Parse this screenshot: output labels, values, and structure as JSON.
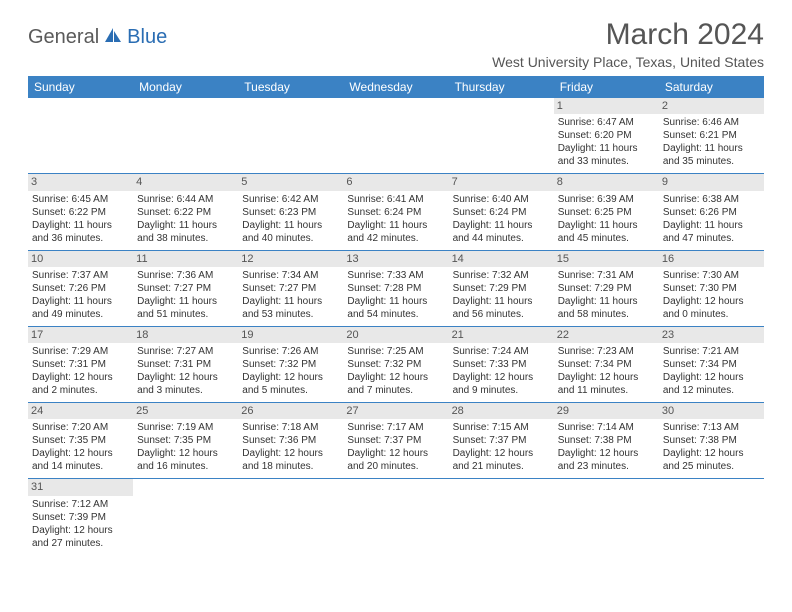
{
  "logo": {
    "general": "General",
    "blue": "Blue"
  },
  "title": "March 2024",
  "subtitle": "West University Place, Texas, United States",
  "colors": {
    "header_bg": "#3b82c4",
    "header_text": "#ffffff",
    "daynum_bg": "#e8e8e8",
    "border": "#3b82c4",
    "text": "#333333",
    "title_color": "#555555"
  },
  "day_headers": [
    "Sunday",
    "Monday",
    "Tuesday",
    "Wednesday",
    "Thursday",
    "Friday",
    "Saturday"
  ],
  "weeks": [
    [
      null,
      null,
      null,
      null,
      null,
      {
        "num": "1",
        "sunrise": "Sunrise: 6:47 AM",
        "sunset": "Sunset: 6:20 PM",
        "daylight": "Daylight: 11 hours and 33 minutes."
      },
      {
        "num": "2",
        "sunrise": "Sunrise: 6:46 AM",
        "sunset": "Sunset: 6:21 PM",
        "daylight": "Daylight: 11 hours and 35 minutes."
      }
    ],
    [
      {
        "num": "3",
        "sunrise": "Sunrise: 6:45 AM",
        "sunset": "Sunset: 6:22 PM",
        "daylight": "Daylight: 11 hours and 36 minutes."
      },
      {
        "num": "4",
        "sunrise": "Sunrise: 6:44 AM",
        "sunset": "Sunset: 6:22 PM",
        "daylight": "Daylight: 11 hours and 38 minutes."
      },
      {
        "num": "5",
        "sunrise": "Sunrise: 6:42 AM",
        "sunset": "Sunset: 6:23 PM",
        "daylight": "Daylight: 11 hours and 40 minutes."
      },
      {
        "num": "6",
        "sunrise": "Sunrise: 6:41 AM",
        "sunset": "Sunset: 6:24 PM",
        "daylight": "Daylight: 11 hours and 42 minutes."
      },
      {
        "num": "7",
        "sunrise": "Sunrise: 6:40 AM",
        "sunset": "Sunset: 6:24 PM",
        "daylight": "Daylight: 11 hours and 44 minutes."
      },
      {
        "num": "8",
        "sunrise": "Sunrise: 6:39 AM",
        "sunset": "Sunset: 6:25 PM",
        "daylight": "Daylight: 11 hours and 45 minutes."
      },
      {
        "num": "9",
        "sunrise": "Sunrise: 6:38 AM",
        "sunset": "Sunset: 6:26 PM",
        "daylight": "Daylight: 11 hours and 47 minutes."
      }
    ],
    [
      {
        "num": "10",
        "sunrise": "Sunrise: 7:37 AM",
        "sunset": "Sunset: 7:26 PM",
        "daylight": "Daylight: 11 hours and 49 minutes."
      },
      {
        "num": "11",
        "sunrise": "Sunrise: 7:36 AM",
        "sunset": "Sunset: 7:27 PM",
        "daylight": "Daylight: 11 hours and 51 minutes."
      },
      {
        "num": "12",
        "sunrise": "Sunrise: 7:34 AM",
        "sunset": "Sunset: 7:27 PM",
        "daylight": "Daylight: 11 hours and 53 minutes."
      },
      {
        "num": "13",
        "sunrise": "Sunrise: 7:33 AM",
        "sunset": "Sunset: 7:28 PM",
        "daylight": "Daylight: 11 hours and 54 minutes."
      },
      {
        "num": "14",
        "sunrise": "Sunrise: 7:32 AM",
        "sunset": "Sunset: 7:29 PM",
        "daylight": "Daylight: 11 hours and 56 minutes."
      },
      {
        "num": "15",
        "sunrise": "Sunrise: 7:31 AM",
        "sunset": "Sunset: 7:29 PM",
        "daylight": "Daylight: 11 hours and 58 minutes."
      },
      {
        "num": "16",
        "sunrise": "Sunrise: 7:30 AM",
        "sunset": "Sunset: 7:30 PM",
        "daylight": "Daylight: 12 hours and 0 minutes."
      }
    ],
    [
      {
        "num": "17",
        "sunrise": "Sunrise: 7:29 AM",
        "sunset": "Sunset: 7:31 PM",
        "daylight": "Daylight: 12 hours and 2 minutes."
      },
      {
        "num": "18",
        "sunrise": "Sunrise: 7:27 AM",
        "sunset": "Sunset: 7:31 PM",
        "daylight": "Daylight: 12 hours and 3 minutes."
      },
      {
        "num": "19",
        "sunrise": "Sunrise: 7:26 AM",
        "sunset": "Sunset: 7:32 PM",
        "daylight": "Daylight: 12 hours and 5 minutes."
      },
      {
        "num": "20",
        "sunrise": "Sunrise: 7:25 AM",
        "sunset": "Sunset: 7:32 PM",
        "daylight": "Daylight: 12 hours and 7 minutes."
      },
      {
        "num": "21",
        "sunrise": "Sunrise: 7:24 AM",
        "sunset": "Sunset: 7:33 PM",
        "daylight": "Daylight: 12 hours and 9 minutes."
      },
      {
        "num": "22",
        "sunrise": "Sunrise: 7:23 AM",
        "sunset": "Sunset: 7:34 PM",
        "daylight": "Daylight: 12 hours and 11 minutes."
      },
      {
        "num": "23",
        "sunrise": "Sunrise: 7:21 AM",
        "sunset": "Sunset: 7:34 PM",
        "daylight": "Daylight: 12 hours and 12 minutes."
      }
    ],
    [
      {
        "num": "24",
        "sunrise": "Sunrise: 7:20 AM",
        "sunset": "Sunset: 7:35 PM",
        "daylight": "Daylight: 12 hours and 14 minutes."
      },
      {
        "num": "25",
        "sunrise": "Sunrise: 7:19 AM",
        "sunset": "Sunset: 7:35 PM",
        "daylight": "Daylight: 12 hours and 16 minutes."
      },
      {
        "num": "26",
        "sunrise": "Sunrise: 7:18 AM",
        "sunset": "Sunset: 7:36 PM",
        "daylight": "Daylight: 12 hours and 18 minutes."
      },
      {
        "num": "27",
        "sunrise": "Sunrise: 7:17 AM",
        "sunset": "Sunset: 7:37 PM",
        "daylight": "Daylight: 12 hours and 20 minutes."
      },
      {
        "num": "28",
        "sunrise": "Sunrise: 7:15 AM",
        "sunset": "Sunset: 7:37 PM",
        "daylight": "Daylight: 12 hours and 21 minutes."
      },
      {
        "num": "29",
        "sunrise": "Sunrise: 7:14 AM",
        "sunset": "Sunset: 7:38 PM",
        "daylight": "Daylight: 12 hours and 23 minutes."
      },
      {
        "num": "30",
        "sunrise": "Sunrise: 7:13 AM",
        "sunset": "Sunset: 7:38 PM",
        "daylight": "Daylight: 12 hours and 25 minutes."
      }
    ],
    [
      {
        "num": "31",
        "sunrise": "Sunrise: 7:12 AM",
        "sunset": "Sunset: 7:39 PM",
        "daylight": "Daylight: 12 hours and 27 minutes."
      },
      null,
      null,
      null,
      null,
      null,
      null
    ]
  ]
}
